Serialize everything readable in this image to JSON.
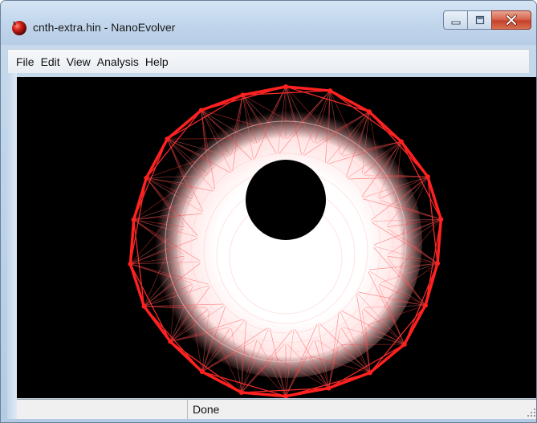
{
  "window": {
    "title": "cnth-extra.hin - NanoEvolver",
    "icon": "red-sphere-app-icon",
    "caption_buttons": [
      "minimize-icon",
      "maximize-icon",
      "close-icon"
    ]
  },
  "menu": {
    "items": [
      {
        "label": "File"
      },
      {
        "label": "Edit"
      },
      {
        "label": "View"
      },
      {
        "label": "Analysis"
      },
      {
        "label": "Help"
      }
    ]
  },
  "viewport": {
    "description": "carbon nanotube end-on view",
    "background": "#000000",
    "outline_color": "#ff2020",
    "fill_color": "#ffffff"
  },
  "status": {
    "left_pane": "",
    "text": "Done"
  }
}
